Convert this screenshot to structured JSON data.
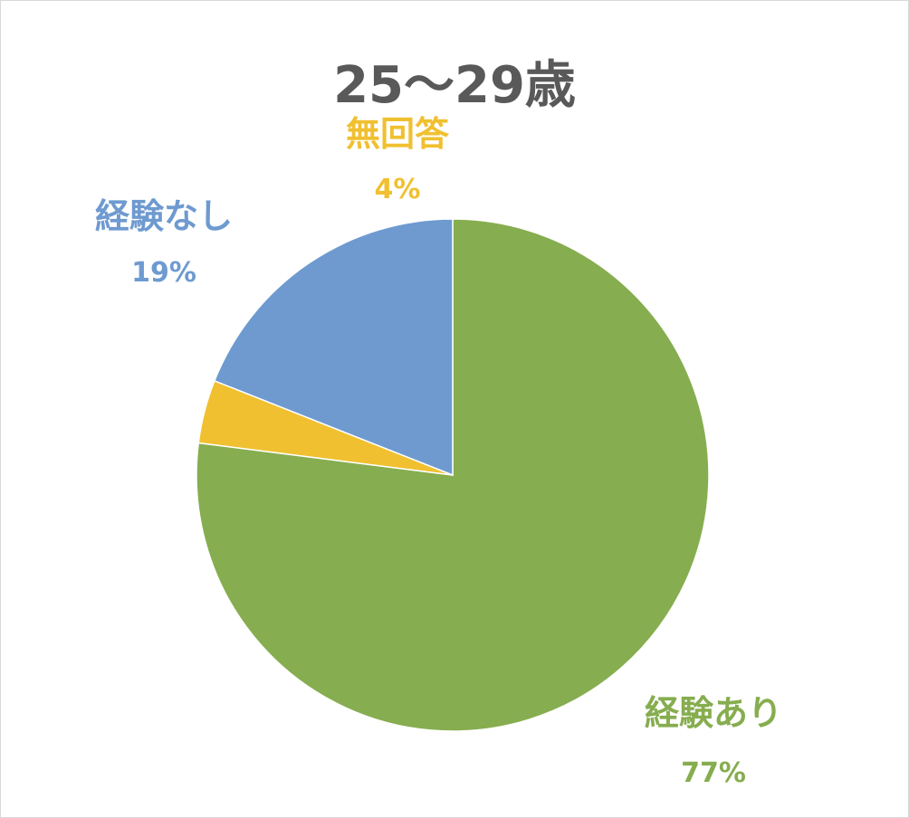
{
  "chart_data": {
    "type": "pie",
    "title": "25〜29歳",
    "slices": [
      {
        "label": "経験あり",
        "percent_label": "77%",
        "value": 77,
        "color": "#86ad4f"
      },
      {
        "label": "無回答",
        "percent_label": "4%",
        "value": 4,
        "color": "#f0c030"
      },
      {
        "label": "経験なし",
        "percent_label": "19%",
        "value": 19,
        "color": "#6e9ad0"
      }
    ],
    "start_angle": "12 o'clock",
    "direction": "clockwise",
    "legend": "none"
  }
}
